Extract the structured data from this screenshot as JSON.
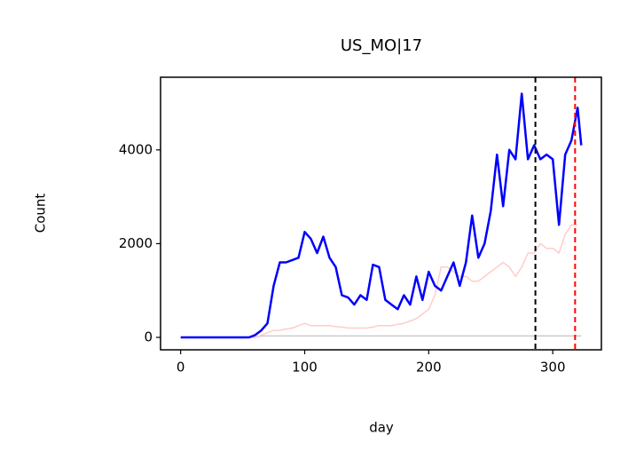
{
  "chart_data": {
    "type": "line",
    "title": "US_MO|17",
    "x_label": "day",
    "y_label": "Count",
    "x": [
      0,
      5,
      10,
      15,
      20,
      25,
      30,
      35,
      40,
      45,
      50,
      55,
      60,
      65,
      70,
      75,
      80,
      85,
      90,
      95,
      100,
      105,
      110,
      115,
      120,
      125,
      130,
      135,
      140,
      145,
      150,
      155,
      160,
      165,
      170,
      175,
      180,
      185,
      190,
      195,
      200,
      205,
      210,
      215,
      220,
      225,
      230,
      235,
      240,
      245,
      250,
      255,
      260,
      265,
      270,
      275,
      280,
      285,
      290,
      295,
      300,
      305,
      310,
      315,
      320,
      323
    ],
    "series": [
      {
        "color": "#cccccc",
        "linewidth": 1.5,
        "values": [
          0,
          0,
          0,
          0,
          0,
          0,
          0,
          0,
          0,
          0,
          0,
          0,
          0,
          30,
          30,
          30,
          30,
          30,
          30,
          30,
          30,
          30,
          30,
          30,
          30,
          30,
          30,
          30,
          30,
          30,
          30,
          30,
          30,
          30,
          30,
          30,
          30,
          30,
          30,
          30,
          30,
          30,
          30,
          30,
          30,
          30,
          30,
          30,
          30,
          30,
          30,
          30,
          30,
          30,
          30,
          30,
          30,
          30,
          30,
          30,
          30,
          30,
          30,
          30,
          30,
          30
        ]
      },
      {
        "color": "#ffcccc",
        "linewidth": 1.5,
        "values": [
          0,
          0,
          0,
          0,
          0,
          0,
          0,
          0,
          0,
          0,
          0,
          0,
          0,
          50,
          100,
          150,
          150,
          180,
          200,
          250,
          300,
          250,
          250,
          250,
          250,
          230,
          220,
          200,
          200,
          200,
          200,
          220,
          250,
          250,
          250,
          280,
          300,
          350,
          400,
          500,
          600,
          900,
          1500,
          1500,
          1400,
          1300,
          1300,
          1200,
          1200,
          1300,
          1400,
          1500,
          1600,
          1500,
          1300,
          1500,
          1800,
          1800,
          2000,
          1900,
          1900,
          1800,
          2200,
          2400,
          2400,
          null
        ]
      },
      {
        "color": "#0000ff",
        "linewidth": 2.5,
        "values": [
          0,
          0,
          0,
          0,
          0,
          0,
          0,
          0,
          0,
          0,
          0,
          0,
          50,
          150,
          300,
          1100,
          1600,
          1600,
          1650,
          1700,
          2250,
          2100,
          1800,
          2150,
          1700,
          1500,
          900,
          850,
          700,
          900,
          800,
          1550,
          1500,
          800,
          700,
          600,
          900,
          700,
          1300,
          800,
          1400,
          1100,
          1000,
          1300,
          1600,
          1100,
          1600,
          2600,
          1700,
          2000,
          2700,
          3900,
          2800,
          4000,
          3800,
          5200,
          3800,
          4100,
          3800,
          3900,
          3800,
          2400,
          3900,
          4200,
          4900,
          4100
        ]
      }
    ],
    "vlines": [
      {
        "x": 286,
        "color": "#000000"
      },
      {
        "x": 318,
        "color": "#ff0000"
      }
    ],
    "xlim": [
      -16.2,
      339.2
    ],
    "ylim": [
      -265,
      5550
    ],
    "xticks": [
      0,
      100,
      200,
      300
    ],
    "yticks": [
      0,
      2000,
      4000
    ]
  }
}
